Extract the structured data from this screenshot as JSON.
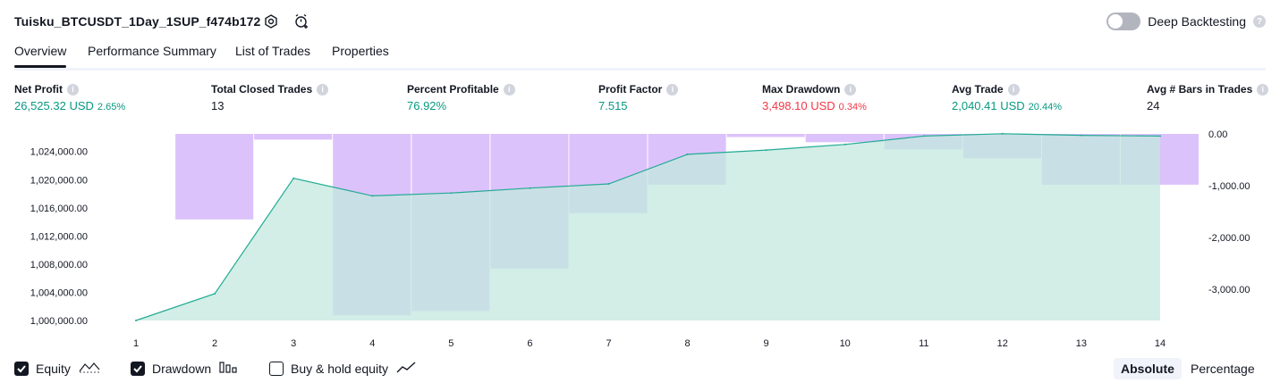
{
  "header": {
    "strategy_title": "Tuisku_BTCUSDT_1Day_1SUP_f474b172",
    "settings_icon": "gear-icon",
    "alert_icon": "add-alert-icon",
    "deep_backtesting_label": "Deep Backtesting",
    "deep_backtesting_on": false
  },
  "tabs": [
    {
      "label": "Overview",
      "active": true
    },
    {
      "label": "Performance Summary",
      "active": false
    },
    {
      "label": "List of Trades",
      "active": false
    },
    {
      "label": "Properties",
      "active": false
    }
  ],
  "metrics": [
    {
      "label": "Net Profit",
      "value": "26,525.32 USD",
      "pct": "2.65%",
      "color": "green"
    },
    {
      "label": "Total Closed Trades",
      "value": "13",
      "pct": "",
      "color": "dark"
    },
    {
      "label": "Percent Profitable",
      "value": "76.92%",
      "pct": "",
      "color": "green"
    },
    {
      "label": "Profit Factor",
      "value": "7.515",
      "pct": "",
      "color": "green"
    },
    {
      "label": "Max Drawdown",
      "value": "3,498.10 USD",
      "pct": "0.34%",
      "color": "red"
    },
    {
      "label": "Avg Trade",
      "value": "2,040.41 USD",
      "pct": "20.44%",
      "color": "green"
    },
    {
      "label": "Avg # Bars in Trades",
      "value": "24",
      "pct": "",
      "color": "dark"
    }
  ],
  "chart_data": {
    "type": "area",
    "x": [
      1,
      2,
      3,
      4,
      5,
      6,
      7,
      8,
      9,
      10,
      11,
      12,
      13,
      14
    ],
    "x_tick_labels": [
      "1",
      "2",
      "3",
      "4",
      "5",
      "6",
      "7",
      "8",
      "9",
      "10",
      "11",
      "12",
      "13",
      "14"
    ],
    "left_axis_ticks": [
      "1,000,000.00",
      "1,004,000.00",
      "1,008,000.00",
      "1,012,000.00",
      "1,016,000.00",
      "1,020,000.00",
      "1,024,000.00"
    ],
    "right_axis_ticks": [
      "0.00",
      "-1,000.00",
      "-2,000.00",
      "-3,000.00"
    ],
    "ylim_left": [
      1000000,
      1026500
    ],
    "ylim_right": [
      -3600,
      0
    ],
    "series": [
      {
        "name": "Equity",
        "axis": "left",
        "type": "area",
        "values": [
          1000000,
          1003800,
          1020200,
          1017700,
          1018100,
          1018800,
          1019400,
          1023600,
          1024200,
          1025000,
          1026200,
          1026525,
          1026300,
          1026200
        ]
      },
      {
        "name": "Drawdown",
        "axis": "right",
        "type": "bar",
        "values": [
          0,
          -1650,
          -110,
          -3500,
          -3420,
          -2600,
          -1530,
          -980,
          -60,
          -160,
          -300,
          -470,
          -980,
          -980
        ]
      }
    ],
    "colors": {
      "equity_line": "#22ab94",
      "equity_fill": "#c3e8df",
      "drawdown_bar": "#dcc2fb",
      "overlap": "#b0b8ea"
    },
    "grid": false
  },
  "legend": {
    "items": [
      {
        "label": "Equity",
        "checked": true,
        "icon": "equity-line-icon"
      },
      {
        "label": "Drawdown",
        "checked": true,
        "icon": "drawdown-bars-icon"
      },
      {
        "label": "Buy & hold equity",
        "checked": false,
        "icon": "buy-hold-line-icon"
      }
    ]
  },
  "scale_mode": {
    "options": [
      "Absolute",
      "Percentage"
    ],
    "selected": "Absolute"
  }
}
